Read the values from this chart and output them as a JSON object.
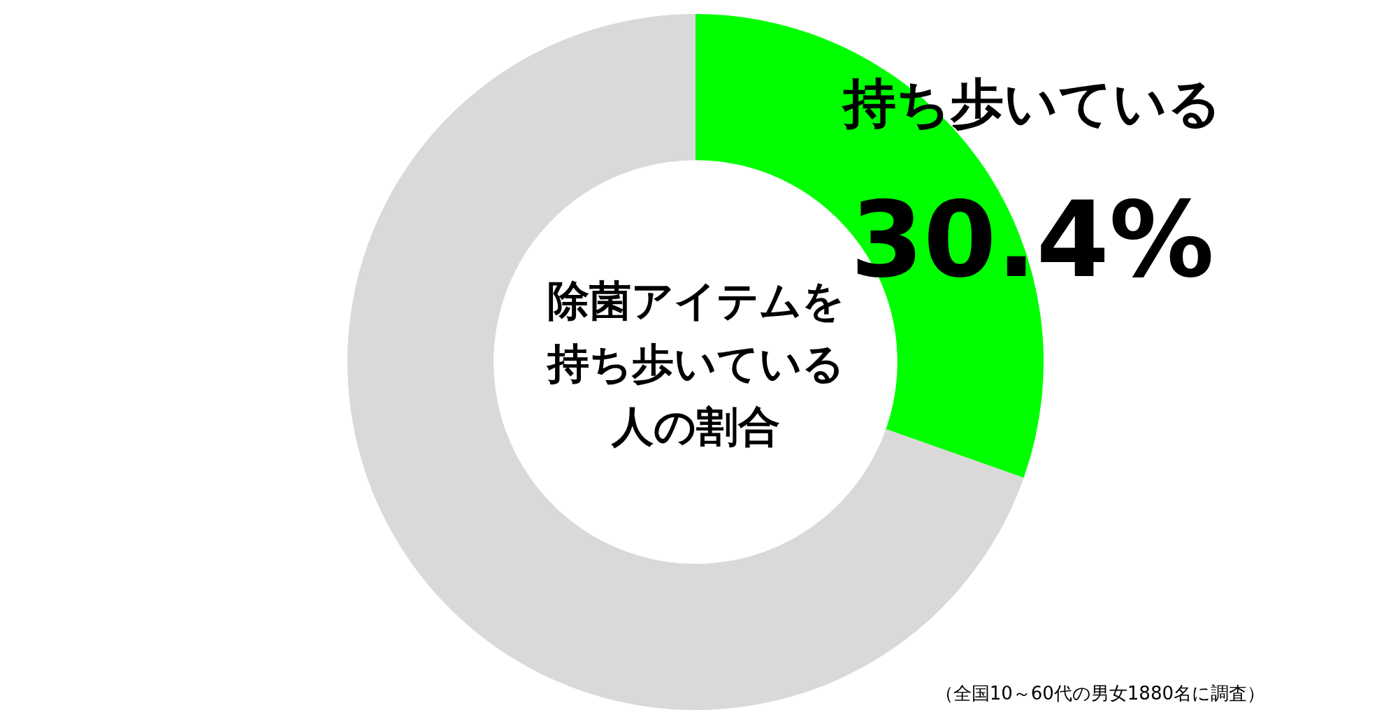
{
  "chart_data": {
    "type": "donut",
    "title": "除菌アイテムを持ち歩いている人の割合",
    "categories": [
      "持ち歩いている",
      null
    ],
    "values": [
      30.4,
      69.6
    ],
    "colors": [
      "#00ff00",
      "#d9d9d9"
    ],
    "value_labels": [
      "30.4%",
      null
    ],
    "annotations": [
      "（全国10～60代の男女1880名に調査）"
    ]
  }
}
